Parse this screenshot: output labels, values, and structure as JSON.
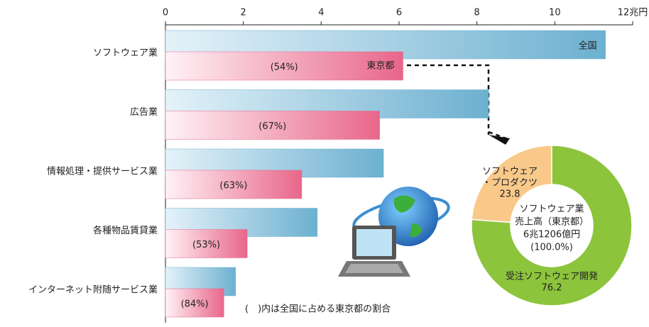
{
  "chart_data": [
    {
      "type": "hbar",
      "categories": [
        "ソフトウェア業",
        "広告業",
        "情報処理・提供サービス業",
        "各種物品賃貸業",
        "インターネット附随サービス業"
      ],
      "series": [
        {
          "name": "全国",
          "color": "#6cb0d0",
          "values": [
            11.3,
            8.3,
            5.6,
            3.9,
            1.8
          ]
        },
        {
          "name": "東京都",
          "color": "#e8668a",
          "values": [
            6.1,
            5.5,
            3.5,
            2.1,
            1.5
          ]
        }
      ],
      "share_labels": [
        "(54%)",
        "(67%)",
        "(63%)",
        "(53%)",
        "(84%)"
      ],
      "note": "(　)内は全国に占める東京都の割合",
      "xlim": [
        0,
        12
      ],
      "xticks": [
        0,
        2,
        4,
        6,
        8,
        10,
        {
          "value": 12,
          "label": "12兆円"
        }
      ]
    },
    {
      "type": "donut",
      "categories": [
        [
          "ソフトウェア",
          "・プロダクツ"
        ],
        [
          "受注ソフトウェア開発"
        ]
      ],
      "values": [
        23.8,
        76.2
      ],
      "colors": [
        "#f9c98a",
        "#8cc43c"
      ],
      "center_label": [
        "ソフトウェア業",
        "売上高（東京都）",
        "6兆1206億円",
        "(100.0%)"
      ]
    }
  ]
}
